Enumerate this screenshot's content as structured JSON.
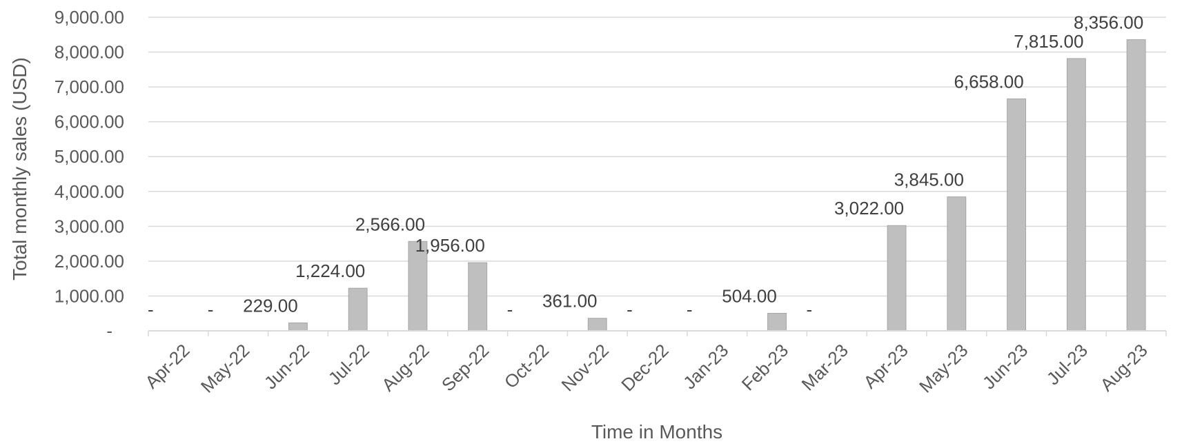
{
  "chart_data": {
    "type": "bar",
    "title": "",
    "xlabel": "Time in Months",
    "ylabel": "Total monthly sales (USD)",
    "ylim": [
      0,
      9000
    ],
    "yticks": [
      0,
      1000,
      2000,
      3000,
      4000,
      5000,
      6000,
      7000,
      8000,
      9000
    ],
    "ytick_labels": [
      "-",
      "1,000.00",
      "2,000.00",
      "3,000.00",
      "4,000.00",
      "5,000.00",
      "6,000.00",
      "7,000.00",
      "8,000.00",
      "9,000.00"
    ],
    "grid": true,
    "legend": "none",
    "categories": [
      "Apr-22",
      "May-22",
      "Jun-22",
      "Jul-22",
      "Aug-22",
      "Sep-22",
      "Oct-22",
      "Nov-22",
      "Dec-22",
      "Jan-23",
      "Feb-23",
      "Mar-23",
      "Apr-23",
      "May-23",
      "Jun-23",
      "Jul-23",
      "Aug-23"
    ],
    "values": [
      0,
      0,
      229,
      1224,
      2566,
      1956,
      0,
      361,
      0,
      0,
      504,
      0,
      3022,
      3845,
      6658,
      7815,
      8356
    ],
    "data_labels": [
      "-",
      "-",
      "229.00",
      "1,224.00",
      "2,566.00",
      "1,956.00",
      "-",
      "361.00",
      "-",
      "-",
      "504.00",
      "-",
      "3,022.00",
      "3,845.00",
      "6,658.00",
      "7,815.00",
      "8,356.00"
    ],
    "colors": {
      "bar": "#bfbfbf",
      "bar_edge": "#a6a6a6",
      "grid": "#d9d9d9",
      "axis": "#d9d9d9",
      "text": "#595959",
      "label_text": "#404040"
    }
  }
}
